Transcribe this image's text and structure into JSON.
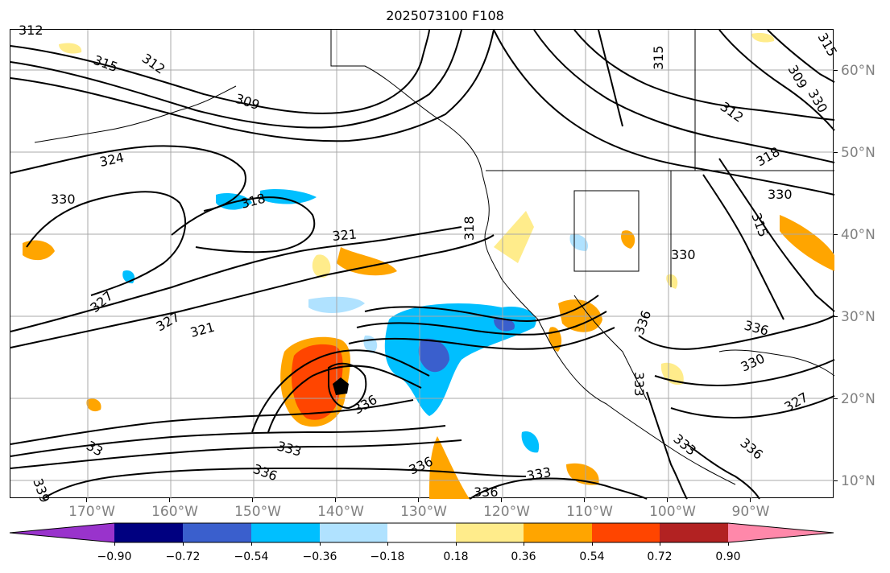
{
  "title": "2025073100 F108",
  "lon_labels": [
    "170°W",
    "160°W",
    "150°W",
    "140°W",
    "130°W",
    "120°W",
    "110°W",
    "100°W",
    "90°W"
  ],
  "lat_labels": [
    "60°N",
    "50°N",
    "40°N",
    "30°N",
    "20°N",
    "10°N"
  ],
  "colorbar": {
    "tick_labels": [
      "−0.90",
      "−0.72",
      "−0.54",
      "−0.36",
      "−0.18",
      "0.18",
      "0.36",
      "0.54",
      "0.72",
      "0.90"
    ],
    "colors": [
      "#9933cc",
      "#000080",
      "#3a5fcd",
      "#00bfff",
      "#b0e2ff",
      "#ffffff",
      "#ffec8b",
      "#ffa500",
      "#ff4500",
      "#b22222",
      "#ff88aa"
    ]
  },
  "contour_labels": [
    "312",
    "315",
    "312",
    "309",
    "324",
    "318",
    "330",
    "321",
    "327",
    "321",
    "327",
    "315",
    "315",
    "312",
    "318",
    "309",
    "315",
    "318",
    "330",
    "336",
    "330",
    "327",
    "336",
    "336",
    "333",
    "336",
    "336",
    "333",
    "336",
    "333",
    "333",
    "336",
    "33",
    "330",
    "330",
    "339"
  ]
}
